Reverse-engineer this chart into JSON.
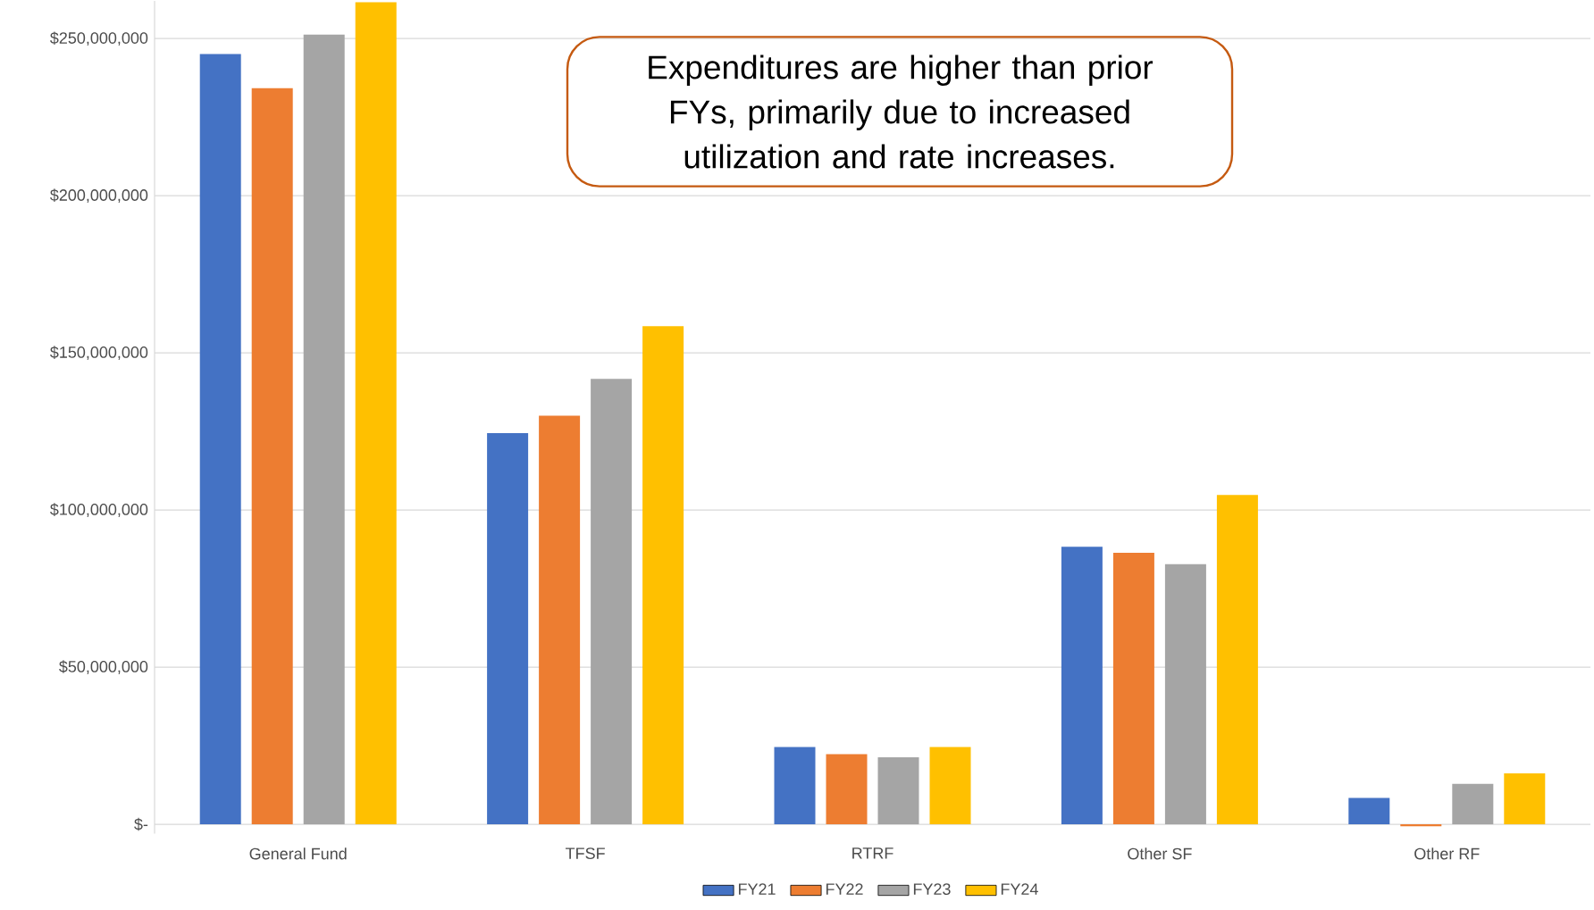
{
  "chart_data": {
    "type": "bar",
    "categories": [
      "General Fund",
      "TFSF",
      "RTRF",
      "Other SF",
      "Other RF"
    ],
    "series": [
      {
        "name": "FY21",
        "color": "#4472c4",
        "values": [
          245100000,
          124500000,
          24600000,
          88300000,
          8400000
        ]
      },
      {
        "name": "FY22",
        "color": "#ed7d31",
        "values": [
          234200000,
          130000000,
          22300000,
          86400000,
          -600000
        ]
      },
      {
        "name": "FY23",
        "color": "#a5a5a5",
        "values": [
          251300000,
          141700000,
          21300000,
          82800000,
          12900000
        ]
      },
      {
        "name": "FY24",
        "color": "#ffc000",
        "values": [
          261600000,
          158500000,
          24600000,
          104800000,
          16200000
        ]
      }
    ],
    "ylim": [
      -3000000,
      262000000
    ],
    "yticks": [
      {
        "value": 0,
        "label": "$-"
      },
      {
        "value": 50000000,
        "label": "$50,000,000"
      },
      {
        "value": 100000000,
        "label": "$100,000,000"
      },
      {
        "value": 150000000,
        "label": "$150,000,000"
      },
      {
        "value": 200000000,
        "label": "$200,000,000"
      },
      {
        "value": 250000000,
        "label": "$250,000,000"
      }
    ],
    "grid": "y",
    "legend": "bottom",
    "annotations": [
      "Expenditures are higher than prior FYs, primarily due to increased utilization and rate increases."
    ]
  }
}
